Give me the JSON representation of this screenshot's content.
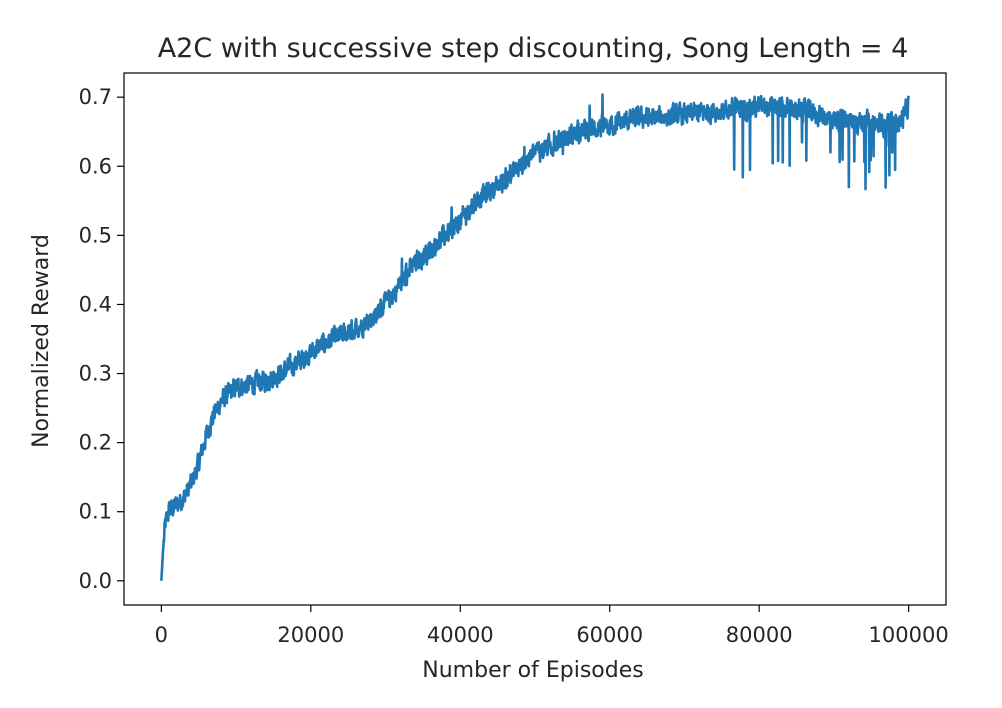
{
  "chart_data": {
    "type": "line",
    "title": "A2C with successive step discounting, Song Length = 4",
    "xlabel": "Number of Episodes",
    "ylabel": "Normalized Reward",
    "xlim": [
      -5000,
      105000
    ],
    "ylim": [
      -0.035,
      0.735
    ],
    "xticks": [
      0,
      20000,
      40000,
      60000,
      80000,
      100000
    ],
    "xtick_labels": [
      "0",
      "20000",
      "40000",
      "60000",
      "80000",
      "100000"
    ],
    "yticks": [
      0.0,
      0.1,
      0.2,
      0.3,
      0.4,
      0.5,
      0.6,
      0.7
    ],
    "ytick_labels": [
      "0.0",
      "0.1",
      "0.2",
      "0.3",
      "0.4",
      "0.5",
      "0.6",
      "0.7"
    ],
    "grid": false,
    "legend": "none",
    "series": [
      {
        "color": "#1f77b4",
        "noisy": true,
        "x": [
          0,
          200,
          500,
          1000,
          2000,
          3000,
          4000,
          5000,
          6000,
          7000,
          8000,
          9000,
          10000,
          12000,
          14000,
          16000,
          18000,
          20000,
          22000,
          24000,
          26000,
          28000,
          30000,
          32000,
          34000,
          36000,
          38000,
          40000,
          42000,
          44000,
          46000,
          48000,
          50000,
          52000,
          54000,
          56000,
          58000,
          60000,
          62000,
          64000,
          66000,
          68000,
          70000,
          72000,
          74000,
          76000,
          78000,
          80000,
          82000,
          84000,
          86000,
          88000,
          90000,
          92000,
          94000,
          96000,
          98000,
          99000,
          100000
        ],
        "y": [
          0.0,
          0.04,
          0.08,
          0.1,
          0.11,
          0.12,
          0.14,
          0.17,
          0.21,
          0.24,
          0.26,
          0.27,
          0.28,
          0.285,
          0.29,
          0.3,
          0.315,
          0.33,
          0.345,
          0.355,
          0.365,
          0.38,
          0.4,
          0.43,
          0.46,
          0.48,
          0.5,
          0.52,
          0.55,
          0.565,
          0.58,
          0.6,
          0.62,
          0.63,
          0.64,
          0.65,
          0.655,
          0.66,
          0.665,
          0.67,
          0.67,
          0.672,
          0.675,
          0.677,
          0.68,
          0.682,
          0.685,
          0.685,
          0.684,
          0.682,
          0.68,
          0.675,
          0.668,
          0.665,
          0.665,
          0.66,
          0.66,
          0.665,
          0.69
        ]
      }
    ]
  }
}
